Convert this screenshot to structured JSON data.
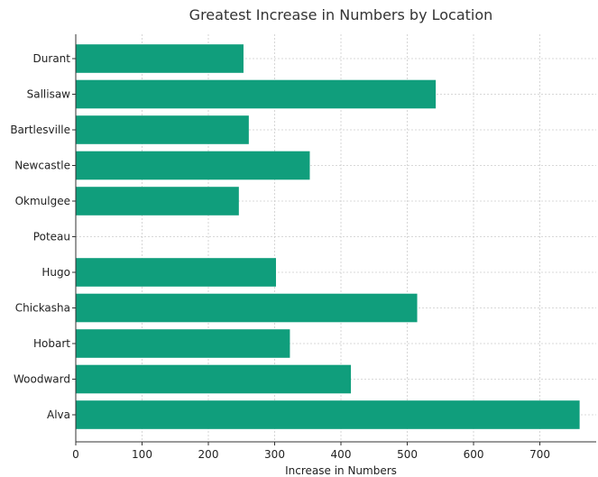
{
  "chart_data": {
    "type": "bar",
    "orientation": "horizontal",
    "title": "Greatest Increase in Numbers by Location",
    "xlabel": "Increase in Numbers",
    "ylabel": "",
    "categories": [
      "Alva",
      "Woodward",
      "Hobart",
      "Chickasha",
      "Hugo",
      "Poteau",
      "Okmulgee",
      "Newcastle",
      "Bartlesville",
      "Sallisaw",
      "Durant"
    ],
    "values": [
      760,
      415,
      323,
      515,
      302,
      0,
      246,
      353,
      261,
      543,
      253
    ],
    "xlim": [
      0,
      785
    ],
    "xticks": [
      0,
      100,
      200,
      300,
      400,
      500,
      600,
      700
    ],
    "grid": true,
    "bar_color": "#109e7c"
  }
}
